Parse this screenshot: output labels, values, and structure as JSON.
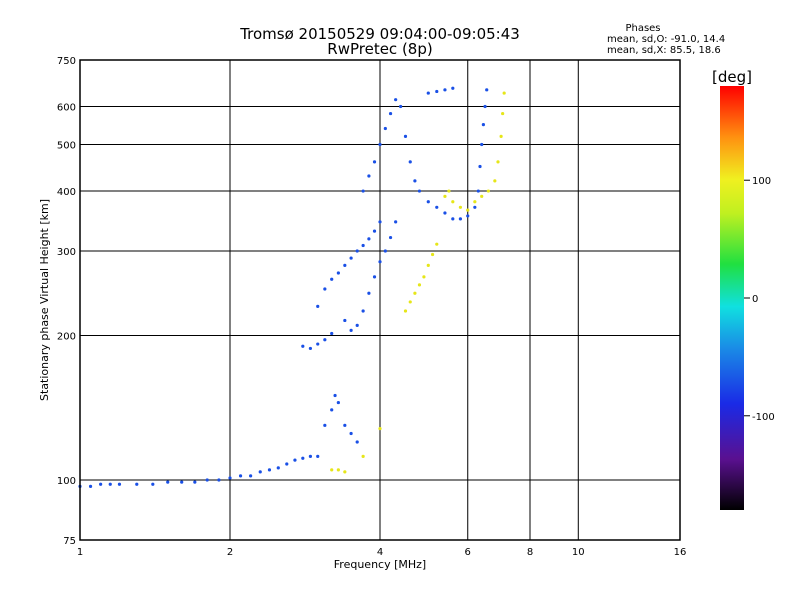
{
  "chart_data": {
    "type": "scatter",
    "title": "Tromsø 20150529 09:04:00-09:05:43",
    "subtitle": "RwPretec (8p)",
    "xlabel": "Frequency [MHz]",
    "ylabel": "Stationary phase Virtual Height [km]",
    "x_scale": "log",
    "y_scale": "log",
    "xlim": [
      1,
      16
    ],
    "ylim": [
      75,
      750
    ],
    "x_ticks": [
      1,
      2,
      4,
      6,
      8,
      10,
      16
    ],
    "y_ticks": [
      75,
      100,
      200,
      300,
      400,
      500,
      600,
      750
    ],
    "grid": true,
    "phase_box": {
      "title": "Phases",
      "line_o": "mean, sd,O: -91.0, 14.4",
      "line_x": "mean, sd,X:  85.5, 18.6"
    },
    "colorbar": {
      "label": "[deg]",
      "ticks": [
        100,
        0,
        -100
      ],
      "range": [
        -180,
        180
      ],
      "colormap": "rainbow: black-purple-blue-cyan-green-yellow-orange-red"
    },
    "trace_color_o": "#1a50e6",
    "trace_color_x": "#e6e619",
    "series": [
      {
        "points": [
          [
            1.0,
            97
          ],
          [
            1.05,
            97
          ],
          [
            1.1,
            98
          ],
          [
            1.15,
            98
          ],
          [
            1.2,
            98
          ],
          [
            1.3,
            98
          ],
          [
            1.4,
            98
          ],
          [
            1.5,
            99
          ],
          [
            1.6,
            99
          ],
          [
            1.7,
            99
          ],
          [
            1.8,
            100
          ],
          [
            1.9,
            100
          ],
          [
            2.0,
            101
          ],
          [
            2.1,
            102
          ],
          [
            2.2,
            102
          ],
          [
            2.3,
            104
          ],
          [
            2.4,
            105
          ],
          [
            2.5,
            106
          ],
          [
            2.6,
            108
          ],
          [
            2.7,
            110
          ],
          [
            2.8,
            111
          ],
          [
            2.9,
            112
          ],
          [
            3.0,
            112
          ],
          [
            2.8,
            190
          ],
          [
            2.9,
            188
          ],
          [
            3.0,
            192
          ],
          [
            3.1,
            196
          ],
          [
            3.2,
            202
          ],
          [
            3.0,
            230
          ],
          [
            3.1,
            250
          ],
          [
            3.2,
            262
          ],
          [
            3.3,
            270
          ],
          [
            3.4,
            280
          ],
          [
            3.5,
            290
          ],
          [
            3.6,
            300
          ],
          [
            3.7,
            308
          ],
          [
            3.8,
            318
          ],
          [
            3.9,
            330
          ],
          [
            4.0,
            345
          ],
          [
            3.4,
            215
          ],
          [
            3.5,
            205
          ],
          [
            3.6,
            210
          ],
          [
            3.7,
            225
          ],
          [
            3.8,
            245
          ],
          [
            3.9,
            265
          ],
          [
            4.0,
            285
          ],
          [
            4.1,
            300
          ],
          [
            4.2,
            320
          ],
          [
            4.3,
            345
          ],
          [
            3.7,
            400
          ],
          [
            3.8,
            430
          ],
          [
            3.9,
            460
          ],
          [
            4.0,
            500
          ],
          [
            4.1,
            540
          ],
          [
            4.2,
            580
          ],
          [
            4.3,
            620
          ],
          [
            4.4,
            600
          ],
          [
            4.5,
            520
          ],
          [
            4.6,
            460
          ],
          [
            4.7,
            420
          ],
          [
            4.8,
            400
          ],
          [
            5.0,
            380
          ],
          [
            5.2,
            370
          ],
          [
            5.4,
            360
          ],
          [
            5.6,
            350
          ],
          [
            5.8,
            350
          ],
          [
            6.0,
            355
          ],
          [
            6.2,
            370
          ],
          [
            6.3,
            400
          ],
          [
            6.35,
            450
          ],
          [
            6.4,
            500
          ],
          [
            6.45,
            550
          ],
          [
            6.5,
            600
          ],
          [
            6.55,
            650
          ],
          [
            5.0,
            640
          ],
          [
            5.2,
            645
          ],
          [
            5.4,
            650
          ],
          [
            5.6,
            655
          ],
          [
            3.1,
            130
          ],
          [
            3.2,
            140
          ],
          [
            3.25,
            150
          ],
          [
            3.3,
            145
          ],
          [
            3.4,
            130
          ],
          [
            3.5,
            125
          ],
          [
            3.6,
            120
          ]
        ]
      },
      {
        "points": [
          [
            3.2,
            105
          ],
          [
            3.3,
            105
          ],
          [
            3.4,
            104
          ],
          [
            3.7,
            112
          ],
          [
            4.0,
            128
          ],
          [
            4.5,
            225
          ],
          [
            4.6,
            235
          ],
          [
            4.7,
            245
          ],
          [
            4.8,
            255
          ],
          [
            4.9,
            265
          ],
          [
            5.0,
            280
          ],
          [
            5.1,
            295
          ],
          [
            5.2,
            310
          ],
          [
            5.4,
            390
          ],
          [
            5.5,
            400
          ],
          [
            5.6,
            380
          ],
          [
            5.8,
            370
          ],
          [
            6.0,
            365
          ],
          [
            6.2,
            380
          ],
          [
            6.4,
            390
          ],
          [
            6.6,
            400
          ],
          [
            6.8,
            420
          ],
          [
            6.9,
            460
          ],
          [
            7.0,
            520
          ],
          [
            7.05,
            580
          ],
          [
            7.1,
            640
          ]
        ]
      }
    ]
  }
}
